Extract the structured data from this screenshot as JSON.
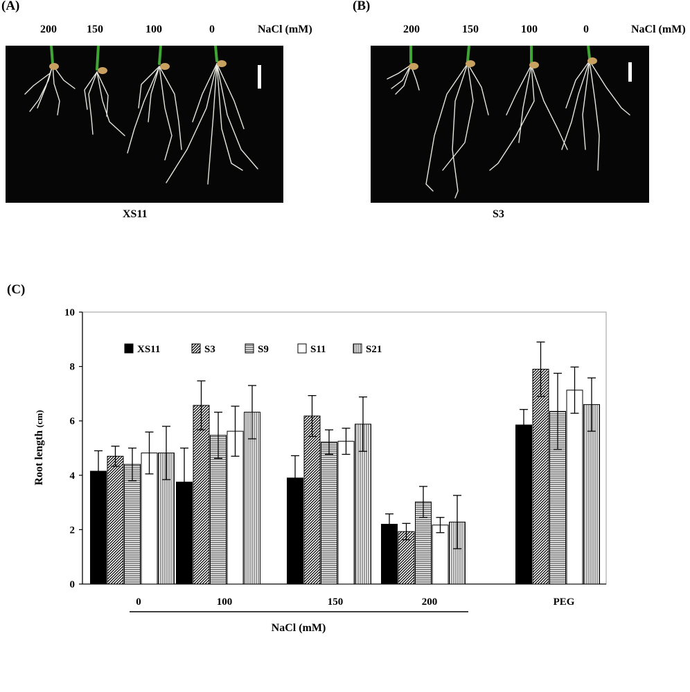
{
  "panel_a": {
    "letter": "(A)",
    "concentrations": [
      "200",
      "150",
      "100",
      "0"
    ],
    "unit_label": "NaCl (mM)",
    "caption": "XS11"
  },
  "panel_b": {
    "letter": "(B)",
    "concentrations": [
      "200",
      "150",
      "100",
      "0"
    ],
    "unit_label": "NaCl (mM)",
    "caption": "S3"
  },
  "panel_c": {
    "letter": "(C)"
  },
  "colors": {
    "photo_background": "#060606",
    "root": "#e8e8e0",
    "shoot": "#3fa535",
    "seed": "#c8a060"
  },
  "chart_data": {
    "type": "bar",
    "categories": [
      "0",
      "100",
      "150",
      "200",
      "PEG"
    ],
    "group_label": "NaCl (mM)",
    "group_label_spans": [
      "0",
      "100",
      "150",
      "200"
    ],
    "ylabel": "Root length",
    "ylabel_unit": "(cm)",
    "ylim": [
      0,
      10
    ],
    "yticks": [
      0,
      2,
      4,
      6,
      8,
      10
    ],
    "grid": false,
    "legend_position": "top-left, inside plot",
    "series": [
      {
        "name": "XS11",
        "pattern": "solid-black",
        "values": [
          4.15,
          3.75,
          3.9,
          2.2,
          5.85
        ],
        "errors": [
          0.75,
          1.25,
          0.82,
          0.38,
          0.57
        ]
      },
      {
        "name": "S3",
        "pattern": "diagonal-hatch",
        "values": [
          4.7,
          6.57,
          6.18,
          1.93,
          7.9
        ],
        "errors": [
          0.37,
          0.9,
          0.75,
          0.3,
          1.0
        ]
      },
      {
        "name": "S9",
        "pattern": "horizontal-lines",
        "values": [
          4.4,
          5.47,
          5.22,
          3.02,
          6.35
        ],
        "errors": [
          0.6,
          0.85,
          0.45,
          0.57,
          1.4
        ]
      },
      {
        "name": "S11",
        "pattern": "white",
        "values": [
          4.82,
          5.62,
          5.25,
          2.17,
          7.13
        ],
        "errors": [
          0.77,
          0.92,
          0.48,
          0.28,
          0.85
        ]
      },
      {
        "name": "S21",
        "pattern": "vertical-lines",
        "values": [
          4.82,
          6.32,
          5.88,
          2.28,
          6.6
        ],
        "errors": [
          0.98,
          0.98,
          1.0,
          0.98,
          0.98
        ]
      }
    ]
  }
}
